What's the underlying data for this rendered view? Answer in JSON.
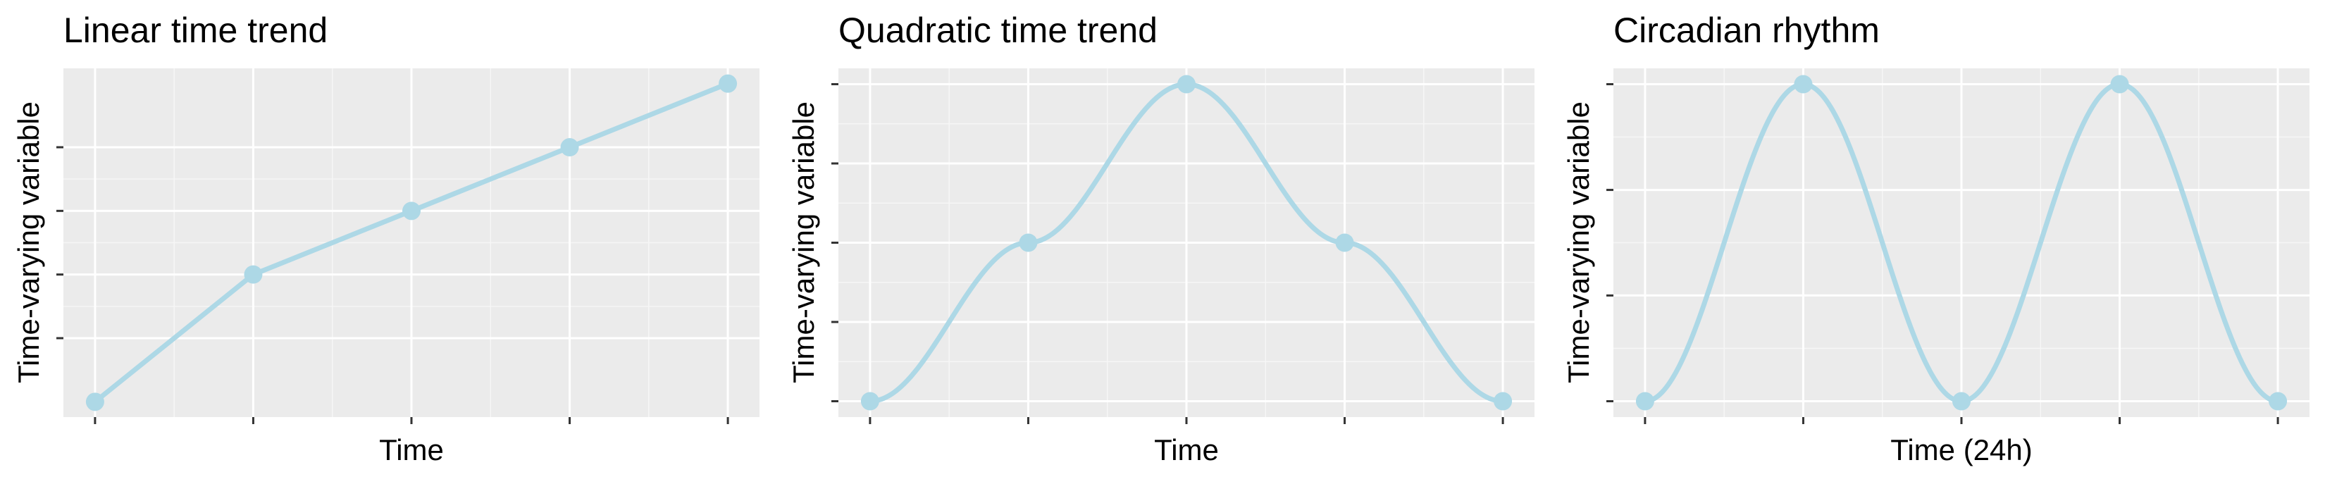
{
  "colors": {
    "panel_background": "#ebebeb",
    "grid_major": "#ffffff",
    "grid_minor": "#f6f6f6",
    "series": "#add8e6",
    "tick": "#333333"
  },
  "chart_data": [
    {
      "type": "line",
      "title": "Linear time trend",
      "xlabel": "Time",
      "ylabel": "Time-varying variable",
      "x_tick_count": 5,
      "y_tick_count": 4,
      "x": [
        1,
        2,
        3,
        4,
        5
      ],
      "points": [
        0,
        1,
        1.5,
        2,
        2.5
      ],
      "curve": "linear",
      "xlim": [
        0.8,
        5.2
      ],
      "ylim": [
        -0.12,
        2.62
      ],
      "y_ticks": [
        0.5,
        1.0,
        1.5,
        2.0
      ],
      "tick_labels_shown": false,
      "grid": true,
      "legend": "none"
    },
    {
      "type": "line",
      "title": "Quadratic time trend",
      "xlabel": "Time",
      "ylabel": "Time-varying variable",
      "x_tick_count": 5,
      "y_tick_count": 5,
      "x": [
        1,
        2,
        3,
        4,
        5
      ],
      "points": [
        0,
        2,
        4,
        2,
        0
      ],
      "curve": "smooth",
      "xlim": [
        0.8,
        5.2
      ],
      "ylim": [
        -0.2,
        4.2
      ],
      "y_ticks": [
        0,
        1,
        2,
        3,
        4
      ],
      "tick_labels_shown": false,
      "grid": true,
      "legend": "none"
    },
    {
      "type": "line",
      "title": "Circadian rhythm",
      "xlabel": "Time (24h)",
      "ylabel": "Time-varying variable",
      "x_tick_count": 5,
      "y_tick_count": 4,
      "x": [
        0,
        6,
        12,
        18,
        24
      ],
      "points": [
        -1,
        1,
        -1,
        1,
        -1
      ],
      "curve": "cosine",
      "xlim": [
        -1.2,
        25.2
      ],
      "ylim": [
        -1.1,
        1.1
      ],
      "y_ticks": [
        -1,
        -0.333,
        0.333,
        1
      ],
      "tick_labels_shown": false,
      "grid": true,
      "legend": "none"
    }
  ]
}
